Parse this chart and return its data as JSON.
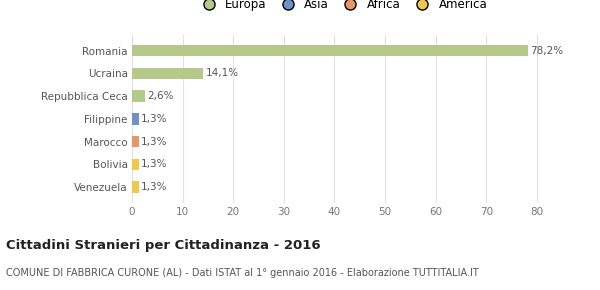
{
  "categories": [
    "Romania",
    "Ucraina",
    "Repubblica Ceca",
    "Filippine",
    "Marocco",
    "Bolivia",
    "Venezuela"
  ],
  "values": [
    78.2,
    14.1,
    2.6,
    1.3,
    1.3,
    1.3,
    1.3
  ],
  "labels": [
    "78,2%",
    "14,1%",
    "2,6%",
    "1,3%",
    "1,3%",
    "1,3%",
    "1,3%"
  ],
  "colors": [
    "#b5c98a",
    "#b5c98a",
    "#b5c98a",
    "#7090c8",
    "#e8956d",
    "#f0c84a",
    "#f0c84a"
  ],
  "legend_items": [
    {
      "label": "Europa",
      "color": "#b5c98a"
    },
    {
      "label": "Asia",
      "color": "#7090c8"
    },
    {
      "label": "Africa",
      "color": "#e8956d"
    },
    {
      "label": "America",
      "color": "#f0c84a"
    }
  ],
  "xlim": [
    0,
    83
  ],
  "xticks": [
    0,
    10,
    20,
    30,
    40,
    50,
    60,
    70,
    80
  ],
  "title": "Cittadini Stranieri per Cittadinanza - 2016",
  "subtitle": "COMUNE DI FABBRICA CURONE (AL) - Dati ISTAT al 1° gennaio 2016 - Elaborazione TUTTITALIA.IT",
  "background_color": "#ffffff",
  "bar_height": 0.5,
  "grid_color": "#e0e0e0"
}
